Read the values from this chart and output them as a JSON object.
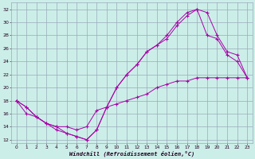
{
  "xlabel": "Windchill (Refroidissement éolien,°C)",
  "bg_color": "#cceee8",
  "grid_color": "#99aabb",
  "line_color": "#aa00aa",
  "xlim": [
    -0.5,
    23.5
  ],
  "ylim": [
    11.5,
    33
  ],
  "xticks": [
    0,
    1,
    2,
    3,
    4,
    5,
    6,
    7,
    8,
    9,
    10,
    11,
    12,
    13,
    14,
    15,
    16,
    17,
    18,
    19,
    20,
    21,
    22,
    23
  ],
  "yticks": [
    12,
    14,
    16,
    18,
    20,
    22,
    24,
    26,
    28,
    30,
    32
  ],
  "x_vals": [
    0,
    1,
    2,
    3,
    4,
    5,
    6,
    7,
    8,
    9,
    10,
    11,
    12,
    13,
    14,
    15,
    16,
    17,
    18,
    19,
    20,
    21,
    22,
    23
  ],
  "y_line1": [
    18.0,
    17.0,
    15.5,
    14.5,
    13.5,
    13.0,
    12.5,
    12.0,
    13.5,
    17.0,
    20.0,
    22.0,
    23.5,
    25.5,
    26.5,
    28.0,
    30.0,
    31.5,
    32.0,
    31.5,
    28.0,
    25.5,
    25.0,
    21.5
  ],
  "y_line2": [
    18.0,
    16.0,
    15.5,
    14.5,
    14.0,
    14.0,
    13.5,
    14.0,
    16.5,
    17.0,
    17.5,
    18.0,
    18.5,
    19.0,
    20.0,
    20.5,
    21.0,
    21.0,
    21.5,
    21.5,
    21.5,
    21.5,
    21.5,
    21.5
  ],
  "y_line3": [
    18.0,
    17.0,
    15.5,
    14.5,
    14.0,
    13.0,
    12.5,
    12.0,
    13.5,
    17.0,
    20.0,
    22.0,
    23.5,
    25.5,
    26.5,
    27.5,
    29.5,
    31.0,
    32.0,
    28.0,
    27.5,
    25.0,
    24.0,
    21.5
  ]
}
